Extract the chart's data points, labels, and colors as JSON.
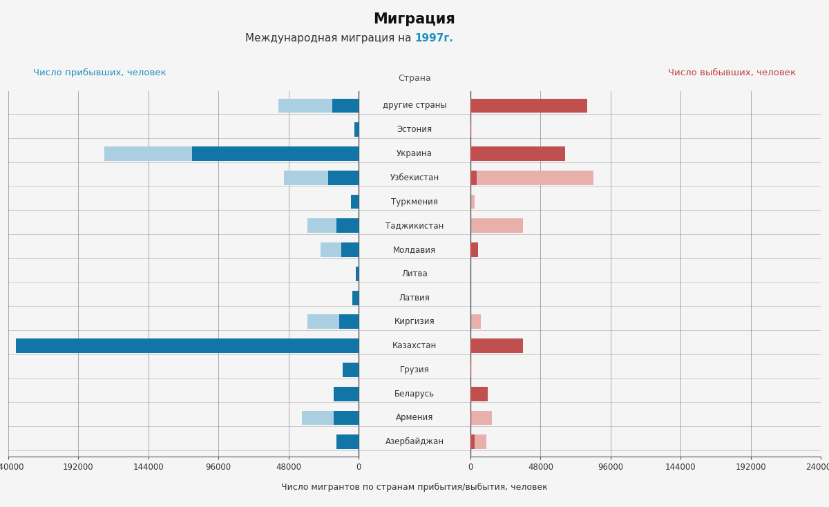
{
  "title": "Миграция",
  "subtitle_plain": "Международная миграция на ",
  "subtitle_year": "1997г.",
  "xlabel": "Число мигрантов по странам прибытия/выбытия, человек",
  "ylabel_left": "Число прибывших, человек",
  "ylabel_right": "Число выбывших, человек",
  "countries_label": "Страна",
  "countries": [
    "другие страны",
    "Эстония",
    "Украина",
    "Узбекистан",
    "Туркмения",
    "Таджикистан",
    "Молдавия",
    "Литва",
    "Латвия",
    "Киргизия",
    "Казахстан",
    "Грузия",
    "Беларусь",
    "Армения",
    "Азербайджан"
  ],
  "arrivals_dark": [
    18000,
    3000,
    114000,
    21000,
    5000,
    15000,
    12000,
    2000,
    4000,
    13000,
    235000,
    11000,
    17000,
    17000,
    15000
  ],
  "arrivals_light": [
    37000,
    0,
    60000,
    30000,
    0,
    20000,
    14000,
    0,
    0,
    22000,
    0,
    0,
    0,
    22000,
    0
  ],
  "departures_dark": [
    80000,
    500,
    65000,
    4000,
    0,
    0,
    5000,
    0,
    0,
    0,
    36000,
    500,
    12000,
    500,
    3000
  ],
  "departures_light": [
    0,
    0,
    0,
    80000,
    3000,
    36000,
    0,
    0,
    0,
    7000,
    0,
    0,
    0,
    14000,
    8000
  ],
  "color_blue_dark": "#1275a8",
  "color_blue_light": "#aacfe0",
  "color_red_dark": "#c05050",
  "color_red_light": "#e8b0aa",
  "color_ylabel_left": "#2090c0",
  "color_ylabel_right": "#c04040",
  "color_year": "#2090c0",
  "xlim": 240000,
  "tick_step": 48000,
  "background_color": "#f5f5f5"
}
